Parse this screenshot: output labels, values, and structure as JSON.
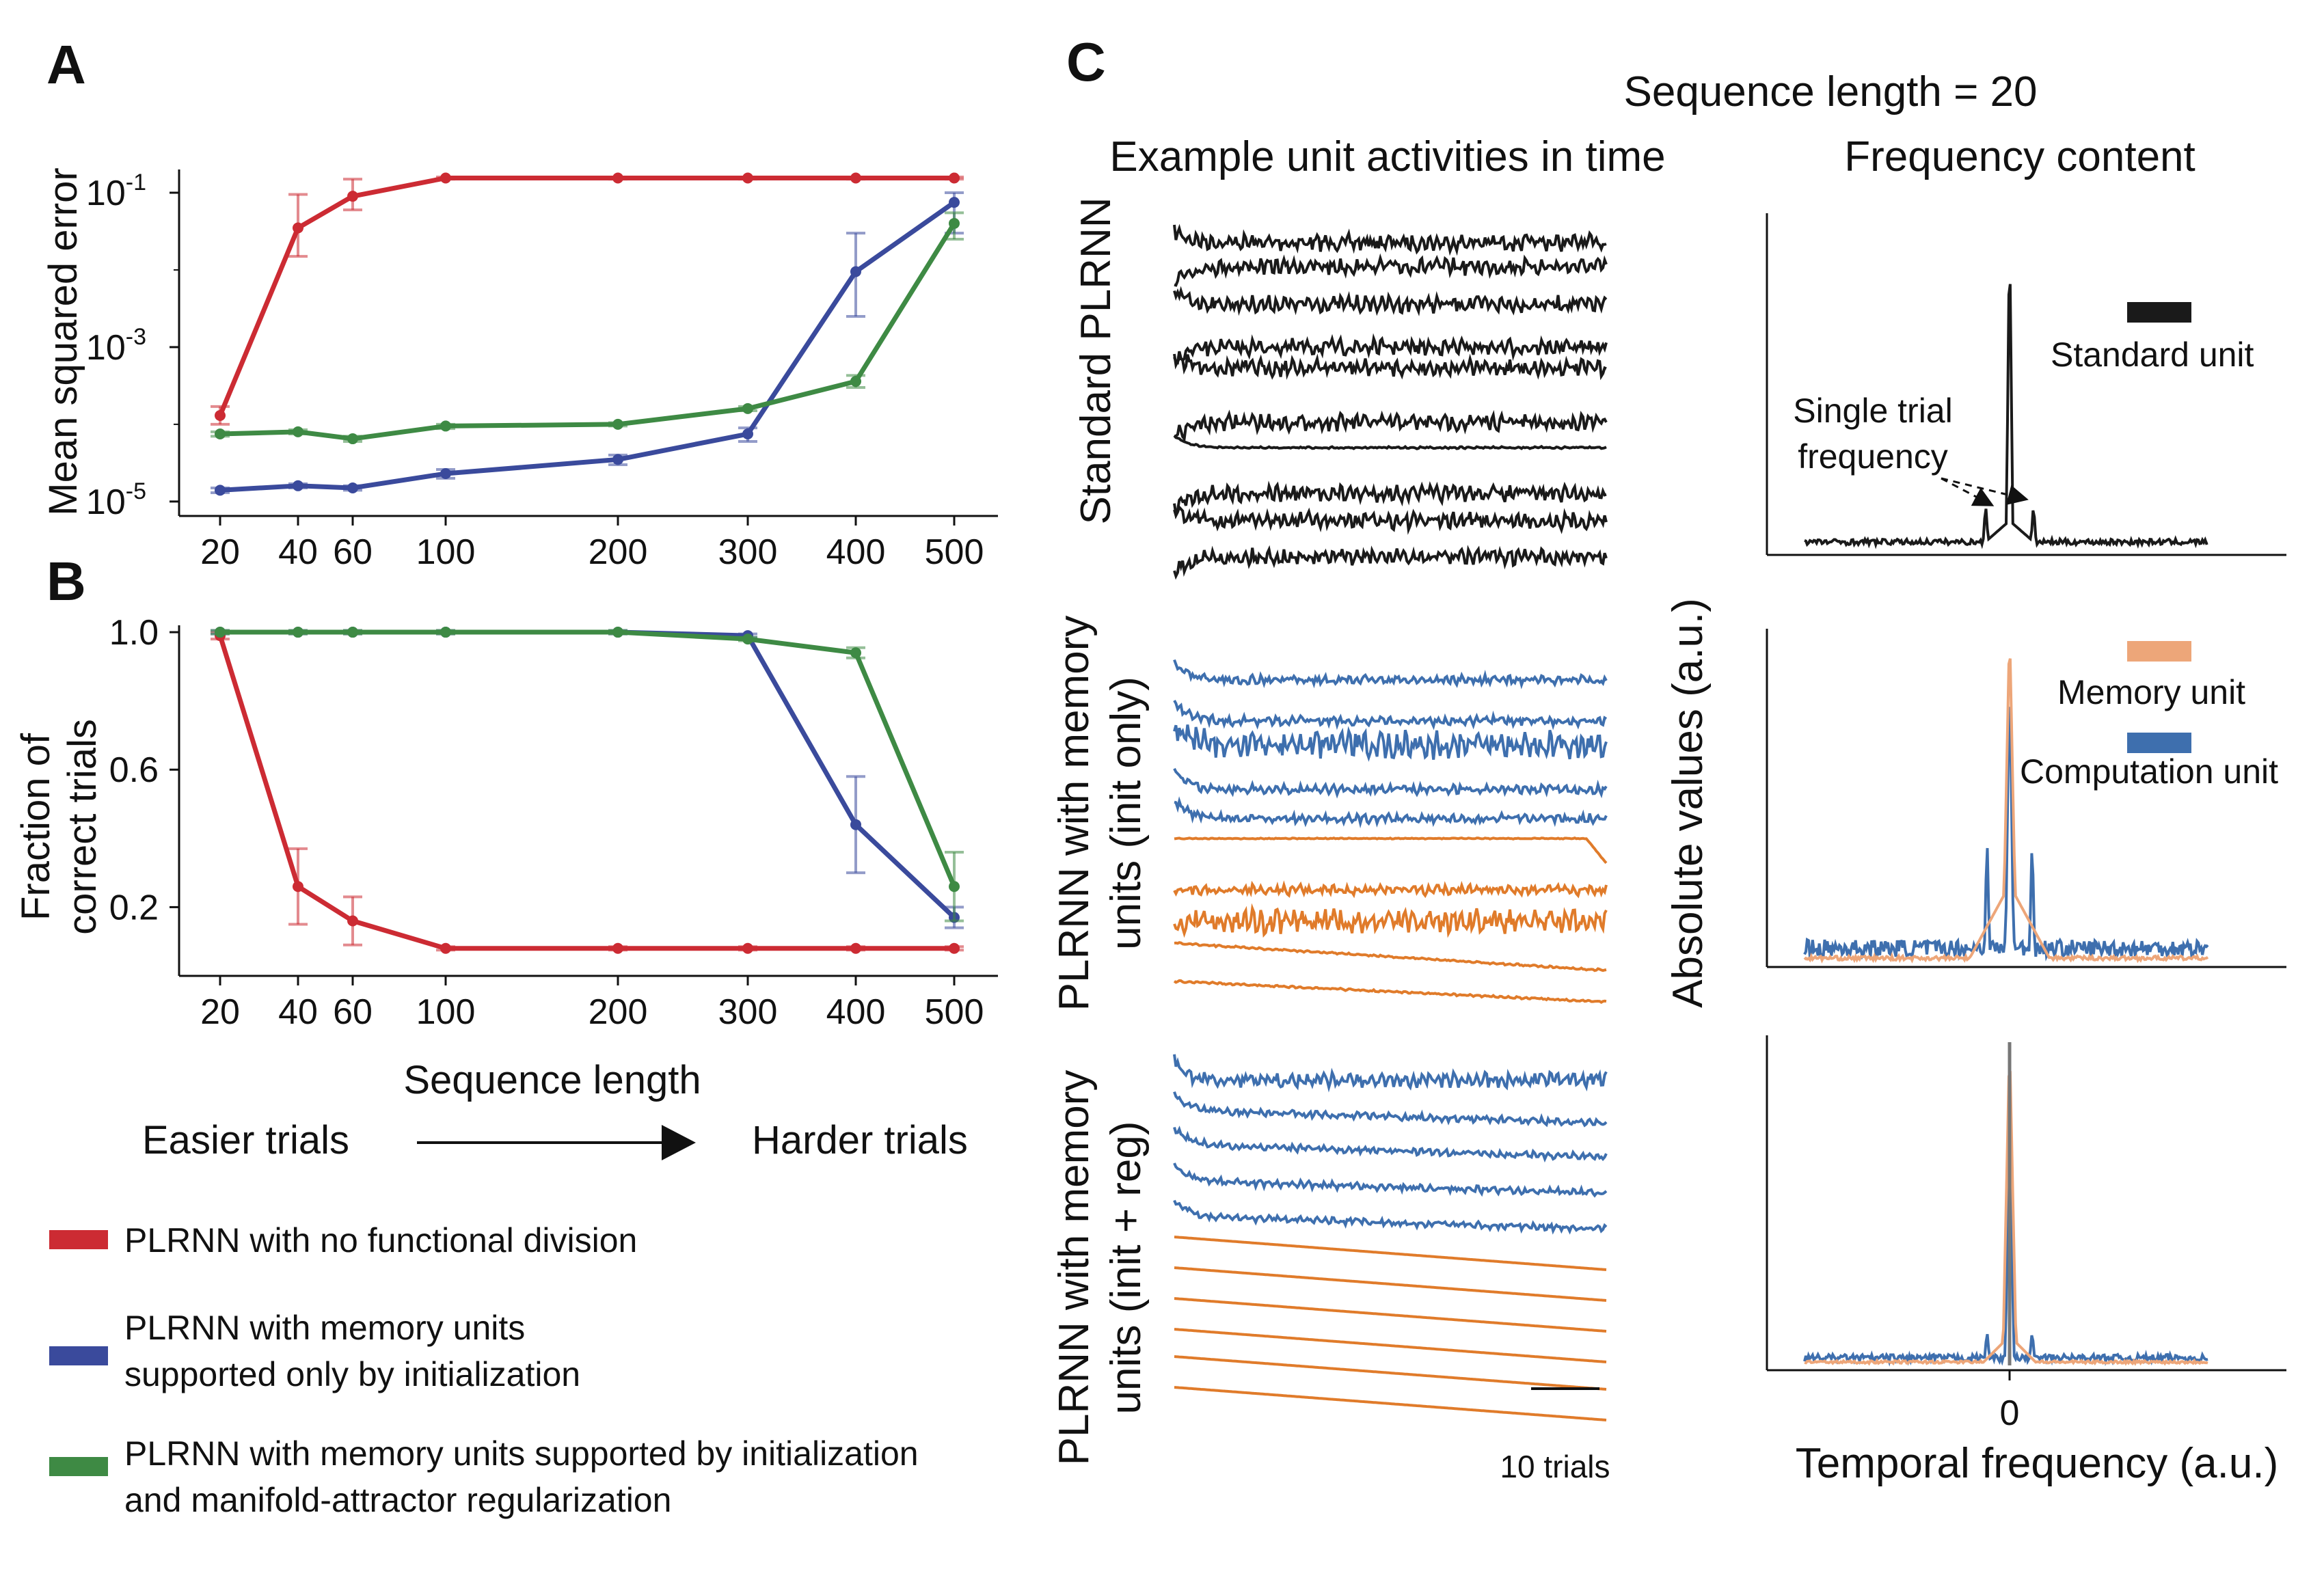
{
  "colors": {
    "red": "#cc2b33",
    "blue": "#3a4a9c",
    "green": "#3e8a44",
    "black": "#1a1a1a",
    "unit_blue": "#3e6fae",
    "unit_orange": "#e07b2a",
    "spec_orange": "#eda679"
  },
  "panels": {
    "a_label": "A",
    "b_label": "B",
    "c_label": "C"
  },
  "shared": {
    "xlabel": "Sequence length",
    "easier": "Easier trials",
    "harder": "Harder trials"
  },
  "legend": [
    {
      "key": "red",
      "lines": [
        "PLRNN with no functional division"
      ]
    },
    {
      "key": "blue",
      "lines": [
        "PLRNN with memory units",
        "supported only by initialization"
      ]
    },
    {
      "key": "green",
      "lines": [
        "PLRNN with memory units supported by initialization",
        "and manifold-attractor regularization"
      ]
    }
  ],
  "panel_c": {
    "title": "Sequence length = 20",
    "col_time": "Example unit activities in time",
    "col_freq": "Frequency content",
    "row_labels": [
      [
        "Standard PLRNN"
      ],
      [
        "PLRNN with memory",
        "units (init only)"
      ],
      [
        "PLRNN with memory",
        "units (init + reg)"
      ]
    ],
    "scale_bar": "10 trials",
    "freq_ylabel": "Absolute values (a.u.)",
    "freq_xlabel": "Temporal frequency (a.u.)",
    "freq_xtick": "0",
    "legend_standard": "Standard unit",
    "legend_memory": "Memory unit",
    "legend_computation": "Computation unit",
    "annotation": [
      "Single trial",
      "frequency"
    ]
  },
  "chart_data": [
    {
      "panel": "A",
      "type": "line",
      "xlabel": "",
      "ylabel": "Mean squared error",
      "categories": [
        "20",
        "40",
        "60",
        "100",
        "200",
        "300",
        "400",
        "500"
      ],
      "ytick_labels": [
        {
          "base": "10",
          "exp": "-1",
          "value": 0.1
        },
        {
          "base": "10",
          "exp": "-3",
          "value": 0.001
        },
        {
          "base": "10",
          "exp": "-5",
          "value": 1e-05
        }
      ],
      "yscale": "log",
      "ylim": [
        6.5e-06,
        0.2
      ],
      "series": [
        {
          "name": "PLRNN with no functional division",
          "color": "red",
          "values": [
            0.00013,
            0.035,
            0.09,
            0.155,
            0.155,
            0.155,
            0.155,
            0.155
          ],
          "err_low": [
            0.0001,
            0.015,
            0.06,
            0.15,
            0.15,
            0.15,
            0.15,
            0.15
          ],
          "err_high": [
            0.00017,
            0.095,
            0.15,
            0.16,
            0.16,
            0.16,
            0.16,
            0.16
          ]
        },
        {
          "name": "PLRNN with memory units supported only by initialization",
          "color": "blue",
          "values": [
            1.4e-05,
            1.6e-05,
            1.5e-05,
            2.3e-05,
            3.5e-05,
            7.5e-05,
            0.0095,
            0.075
          ],
          "err_low": [
            1.3e-05,
            1.5e-05,
            1.4e-05,
            2e-05,
            3e-05,
            6e-05,
            0.0025,
            0.03
          ],
          "err_high": [
            1.5e-05,
            1.7e-05,
            1.6e-05,
            2.6e-05,
            4e-05,
            9e-05,
            0.03,
            0.1
          ]
        },
        {
          "name": "PLRNN with memory units supported by initialization and manifold-attractor regularization",
          "color": "green",
          "values": [
            7.5e-05,
            8e-05,
            6.5e-05,
            9.5e-05,
            0.0001,
            0.00016,
            0.00036,
            0.04
          ],
          "err_low": [
            7e-05,
            7.5e-05,
            6e-05,
            8.8e-05,
            9.5e-05,
            0.00015,
            0.0003,
            0.025
          ],
          "err_high": [
            8e-05,
            8.5e-05,
            7e-05,
            0.0001,
            0.000105,
            0.00017,
            0.00043,
            0.055
          ]
        }
      ]
    },
    {
      "panel": "B",
      "type": "line",
      "xlabel": "",
      "ylabel": "Fraction of correct trials",
      "ylabel_lines": [
        "Fraction of",
        "correct trials"
      ],
      "categories": [
        "20",
        "40",
        "60",
        "100",
        "200",
        "300",
        "400",
        "500"
      ],
      "yticks": [
        "1.0",
        "0.6",
        "0.2"
      ],
      "ylim": [
        0.0,
        1.02
      ],
      "series": [
        {
          "name": "PLRNN with no functional division",
          "color": "red",
          "values": [
            0.99,
            0.26,
            0.16,
            0.08,
            0.08,
            0.08,
            0.08,
            0.08
          ],
          "err": [
            0.01,
            0.11,
            0.07,
            0.005,
            0.005,
            0.005,
            0.005,
            0.005
          ]
        },
        {
          "name": "PLRNN with memory units supported only by initialization",
          "color": "blue",
          "values": [
            1.0,
            1.0,
            1.0,
            1.0,
            1.0,
            0.99,
            0.44,
            0.17
          ],
          "err": [
            0.005,
            0.005,
            0.005,
            0.005,
            0.005,
            0.005,
            0.14,
            0.03
          ]
        },
        {
          "name": "PLRNN with memory units supported by initialization and manifold-attractor regularization",
          "color": "green",
          "values": [
            1.0,
            1.0,
            1.0,
            1.0,
            1.0,
            0.98,
            0.94,
            0.26
          ],
          "err": [
            0.005,
            0.005,
            0.005,
            0.005,
            0.005,
            0.005,
            0.015,
            0.1
          ]
        }
      ]
    }
  ]
}
